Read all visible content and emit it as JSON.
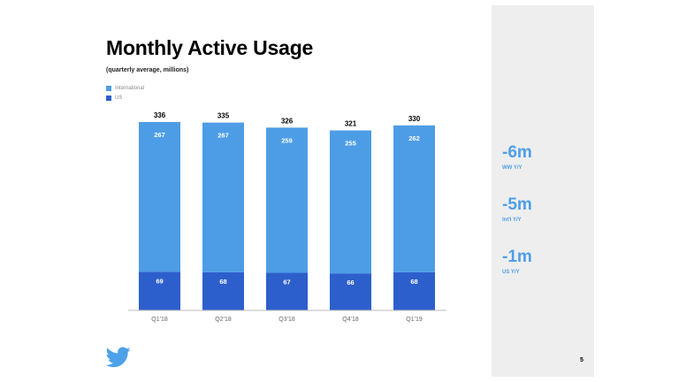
{
  "slide": {
    "title": "Monthly Active Usage",
    "subtitle": "(quarterly average, millions)",
    "page_number": "5"
  },
  "legend": [
    {
      "label": "International",
      "color": "#4d9de6"
    },
    {
      "label": "US",
      "color": "#2d5fcc"
    }
  ],
  "stats": [
    {
      "value": "-6m",
      "label": "WW Y/Y"
    },
    {
      "value": "-5m",
      "label": "Int'l Y/Y"
    },
    {
      "value": "-1m",
      "label": "US Y/Y"
    }
  ],
  "logo": {
    "icon": "twitter-bird-icon",
    "color": "#4da1e8"
  },
  "chart_data": {
    "type": "bar",
    "stacked": true,
    "categories": [
      "Q1'18",
      "Q2'18",
      "Q3'18",
      "Q4'18",
      "Q1'19"
    ],
    "series": [
      {
        "name": "US",
        "values": [
          69,
          68,
          67,
          66,
          68
        ],
        "color": "#2d5fcc"
      },
      {
        "name": "International",
        "values": [
          267,
          267,
          259,
          255,
          262
        ],
        "color": "#4d9de6"
      }
    ],
    "totals": [
      336,
      335,
      326,
      321,
      330
    ],
    "title": "Monthly Active Usage",
    "subtitle": "(quarterly average, millions)",
    "xlabel": "",
    "ylabel": "",
    "ylim": [
      0,
      336
    ],
    "grid": false,
    "legend_position": "top-left"
  }
}
